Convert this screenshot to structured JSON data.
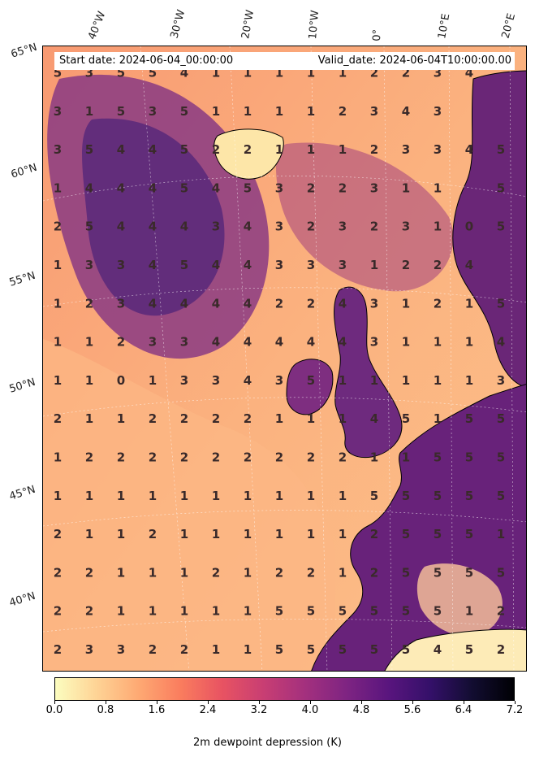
{
  "header": {
    "start_date": "Start date: 2024-06-04_00:00:00",
    "valid_date": "Valid_date: 2024-06-04T10:00:00.00"
  },
  "lon_labels": [
    "40°W",
    "30°W",
    "20°W",
    "10°W",
    "0°",
    "10°E",
    "20°E"
  ],
  "lat_labels": [
    "65°N",
    "60°N",
    "55°N",
    "50°N",
    "45°N",
    "40°N"
  ],
  "colorbar": {
    "label": "2m dewpoint depression (K)",
    "ticks": [
      "0.0",
      "0.8",
      "1.6",
      "2.4",
      "3.2",
      "4.0",
      "4.8",
      "5.6",
      "6.4",
      "7.2"
    ],
    "min": 0.0,
    "max": 7.2,
    "colormap": "magma_r",
    "colors": [
      "#fcfdbf",
      "#fed395",
      "#fea973",
      "#fa7d5e",
      "#e85362",
      "#c83e73",
      "#a3307e",
      "#7e2482",
      "#59157e",
      "#341069",
      "#120d31",
      "#000004"
    ]
  },
  "grid_values": [
    [
      "5",
      "3",
      "5",
      "5",
      "4",
      "1",
      "1",
      "1",
      "1",
      "1",
      "2",
      "2",
      "3",
      "4"
    ],
    [
      "3",
      "1",
      "5",
      "3",
      "5",
      "1",
      "1",
      "1",
      "1",
      "2",
      "3",
      "4",
      "3",
      ""
    ],
    [
      "3",
      "5",
      "4",
      "4",
      "5",
      "2",
      "2",
      "1",
      "1",
      "1",
      "2",
      "3",
      "3",
      "4",
      "5"
    ],
    [
      "1",
      "4",
      "4",
      "4",
      "5",
      "4",
      "5",
      "3",
      "2",
      "2",
      "3",
      "1",
      "1",
      "",
      "5"
    ],
    [
      "2",
      "5",
      "4",
      "4",
      "4",
      "3",
      "4",
      "3",
      "2",
      "3",
      "2",
      "3",
      "1",
      "0",
      "5"
    ],
    [
      "1",
      "3",
      "3",
      "4",
      "5",
      "4",
      "4",
      "3",
      "3",
      "3",
      "1",
      "2",
      "2",
      "4",
      ""
    ],
    [
      "1",
      "2",
      "3",
      "4",
      "4",
      "4",
      "4",
      "2",
      "2",
      "4",
      "3",
      "1",
      "2",
      "1",
      "5"
    ],
    [
      "1",
      "1",
      "2",
      "3",
      "3",
      "4",
      "4",
      "4",
      "4",
      "4",
      "3",
      "1",
      "1",
      "1",
      "4"
    ],
    [
      "1",
      "1",
      "0",
      "1",
      "3",
      "3",
      "4",
      "3",
      "5",
      "1",
      "1",
      "1",
      "1",
      "1",
      "3"
    ],
    [
      "2",
      "1",
      "1",
      "2",
      "2",
      "2",
      "2",
      "1",
      "1",
      "1",
      "4",
      "5",
      "1",
      "5",
      "5"
    ],
    [
      "1",
      "2",
      "2",
      "2",
      "2",
      "2",
      "2",
      "2",
      "2",
      "2",
      "1",
      "1",
      "5",
      "5",
      "5"
    ],
    [
      "1",
      "1",
      "1",
      "1",
      "1",
      "1",
      "1",
      "1",
      "1",
      "1",
      "5",
      "5",
      "5",
      "5",
      "5"
    ],
    [
      "2",
      "1",
      "1",
      "2",
      "1",
      "1",
      "1",
      "1",
      "1",
      "1",
      "2",
      "5",
      "5",
      "5",
      "1"
    ],
    [
      "2",
      "2",
      "1",
      "1",
      "1",
      "2",
      "1",
      "2",
      "2",
      "1",
      "2",
      "5",
      "5",
      "5",
      "5"
    ],
    [
      "2",
      "2",
      "1",
      "1",
      "1",
      "1",
      "1",
      "5",
      "5",
      "5",
      "5",
      "5",
      "5",
      "1",
      "2"
    ],
    [
      "2",
      "3",
      "3",
      "2",
      "2",
      "1",
      "1",
      "5",
      "5",
      "5",
      "5",
      "5",
      "4",
      "5",
      "2"
    ]
  ]
}
